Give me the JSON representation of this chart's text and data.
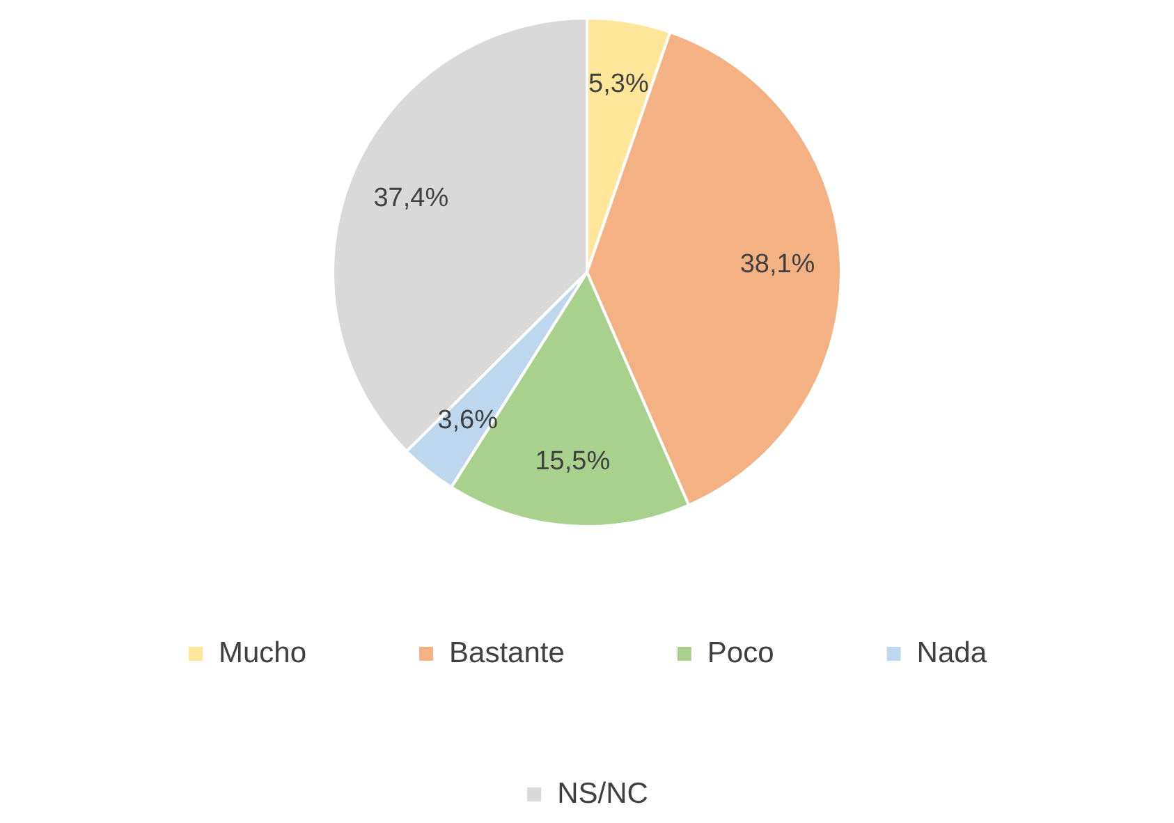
{
  "chart_data": {
    "type": "pie",
    "categories": [
      "Mucho",
      "Bastante",
      "Poco",
      "Nada",
      "NS/NC"
    ],
    "values": [
      5.3,
      38.1,
      15.5,
      3.6,
      37.4
    ],
    "colors": [
      "#ffe699",
      "#f4b183",
      "#a9d18e",
      "#bdd7ee",
      "#d9d9d9"
    ],
    "value_labels": [
      "5,3%",
      "38,1%",
      "15,5%",
      "3,6%",
      "37,4%"
    ],
    "legend": "bottom"
  }
}
